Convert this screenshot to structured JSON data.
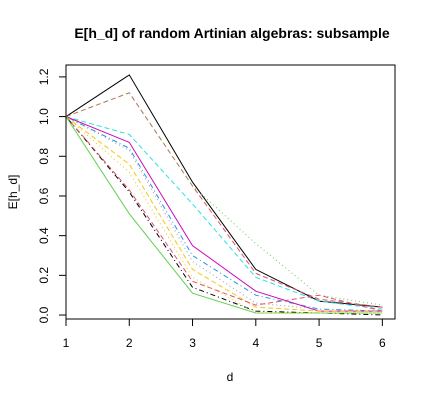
{
  "chart_data": {
    "type": "line",
    "title": "E[h_d] of random Artinian algebras: subsample",
    "xlabel": "d",
    "ylabel": "E[h_d]",
    "x": [
      1,
      2,
      3,
      4,
      5,
      6
    ],
    "xlim": [
      1,
      6.2
    ],
    "ylim": [
      -0.02,
      1.26
    ],
    "x_ticks": [
      "1",
      "2",
      "3",
      "4",
      "5",
      "6"
    ],
    "y_ticks": [
      "0.0",
      "0.2",
      "0.4",
      "0.6",
      "0.8",
      "1.0",
      "1.2"
    ],
    "grid": false,
    "series": [
      {
        "color": "#000000",
        "dash": "solid",
        "values": [
          1.0,
          1.21,
          0.67,
          0.23,
          0.07,
          0.04
        ]
      },
      {
        "color": "#df536b",
        "dash": "dashed",
        "values": [
          1.0,
          1.12,
          0.65,
          0.21,
          0.08,
          0.04
        ]
      },
      {
        "color": "#61d04f",
        "dash": "dotted",
        "values": [
          1.0,
          1.12,
          0.65,
          0.36,
          0.1,
          0.05
        ]
      },
      {
        "color": "#28e2e5",
        "dash": "dashed",
        "values": [
          1.0,
          0.91,
          0.56,
          0.19,
          0.07,
          0.03
        ]
      },
      {
        "color": "#2297e6",
        "dash": "dotdash",
        "values": [
          1.0,
          0.84,
          0.3,
          0.1,
          0.03,
          0.02
        ]
      },
      {
        "color": "#cd0bbc",
        "dash": "solid",
        "values": [
          1.0,
          0.87,
          0.35,
          0.12,
          0.02,
          0.02
        ]
      },
      {
        "color": "#f5c710",
        "dash": "dashed",
        "values": [
          1.0,
          0.76,
          0.23,
          0.04,
          0.02,
          0.02
        ]
      },
      {
        "color": "#9e9e9e",
        "dash": "dotted",
        "values": [
          1.0,
          0.83,
          0.27,
          0.06,
          0.03,
          0.02
        ]
      },
      {
        "color": "#000000",
        "dash": "dotdash",
        "values": [
          1.0,
          0.62,
          0.14,
          0.02,
          0.01,
          0.0
        ]
      },
      {
        "color": "#df536b",
        "dash": "dashed",
        "values": [
          1.0,
          0.63,
          0.17,
          0.05,
          0.1,
          0.02
        ]
      },
      {
        "color": "#61d04f",
        "dash": "solid",
        "values": [
          1.0,
          0.51,
          0.11,
          0.01,
          0.01,
          0.01
        ]
      },
      {
        "color": "#f5c710",
        "dash": "dotted",
        "values": [
          1.0,
          0.72,
          0.19,
          0.01,
          0.01,
          0.01
        ]
      }
    ]
  }
}
